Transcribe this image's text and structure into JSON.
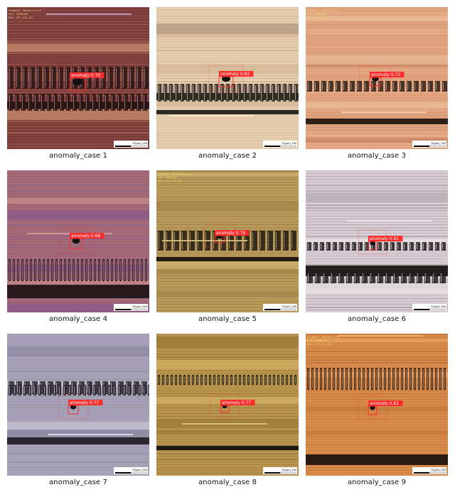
{
  "panels": [
    {
      "caption": "anomaly_case 1",
      "label": "anomaly",
      "score": "0.70",
      "scale_text": "70[μm]",
      "scale_value": "158",
      "palette": "maroon",
      "overlay": [
        "Inspect: Defect-n-st",
        "Lot: 0245412",
        "Die: 07 (r3,c5)"
      ]
    },
    {
      "caption": "anomaly_case 2",
      "label": "anomaly",
      "score": "0.82",
      "scale_text": "70[μm]",
      "scale_value": "158",
      "palette": "cream",
      "overlay": []
    },
    {
      "caption": "anomaly_case 3",
      "label": "anomaly",
      "score": "0.73",
      "scale_text": "70[μm]",
      "scale_value": "158",
      "palette": "peach",
      "overlay": [
        "Inspect: Defect-n-st",
        "Lot: 0245412",
        "Die: 12 (r1,c4)"
      ]
    },
    {
      "caption": "anomaly_case 4",
      "label": "anomaly",
      "score": "0.68",
      "scale_text": "70[μm]",
      "scale_value": "158",
      "palette": "rose",
      "overlay": []
    },
    {
      "caption": "anomaly_case 5",
      "label": "anomaly",
      "score": "0.79",
      "scale_text": "70[μm]",
      "scale_value": "158",
      "palette": "olive",
      "overlay": [
        "Inspect: Defect-n-st",
        "Lot: 0245412",
        "Die: 03 (r2,c6)"
      ]
    },
    {
      "caption": "anomaly_case 6",
      "label": "anomaly",
      "score": "0.81",
      "scale_text": "70[μm]",
      "scale_value": "158",
      "palette": "silver",
      "overlay": []
    },
    {
      "caption": "anomaly_case 7",
      "label": "anomaly",
      "score": "0.77",
      "scale_text": "70[μm]",
      "scale_value": "158",
      "palette": "lavender",
      "overlay": []
    },
    {
      "caption": "anomaly_case 8",
      "label": "anomaly",
      "score": "0.77",
      "scale_text": "70[μm]",
      "scale_value": "158",
      "palette": "gold",
      "overlay": []
    },
    {
      "caption": "anomaly_case 9",
      "label": "anomaly",
      "score": "0.61",
      "scale_text": "70[μm]",
      "scale_value": "158",
      "palette": "orange",
      "overlay": [
        "Inspect: Defect-n-st",
        "Lot: 0245412",
        "Die: 09 (r4,c2)"
      ]
    }
  ],
  "colors": {
    "box": "#ff2a2a",
    "label_bg": "#ff2a2a",
    "label_text": "#ffffff",
    "caption": "#111111"
  }
}
